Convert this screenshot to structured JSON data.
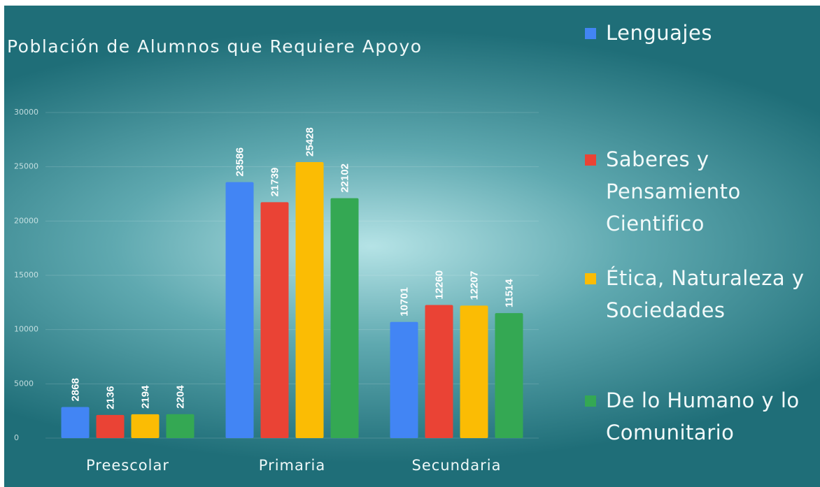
{
  "chart_data": {
    "type": "bar",
    "title": "Población de Alumnos que Requiere Apoyo",
    "categories": [
      "Preescolar",
      "Primaria",
      "Secundaria"
    ],
    "series": [
      {
        "name": "Lenguajes",
        "color": "#4285f4",
        "values": [
          2868,
          23586,
          10701
        ]
      },
      {
        "name": "Saberes y Pensamiento Cientifico",
        "color": "#ea4335",
        "values": [
          2136,
          21739,
          12260
        ]
      },
      {
        "name": "Ética, Naturaleza y Sociedades",
        "color": "#fbbc04",
        "values": [
          2194,
          25428,
          12207
        ]
      },
      {
        "name": "De lo Humano y lo Comunitario",
        "color": "#34a853",
        "values": [
          2204,
          22102,
          11514
        ]
      }
    ],
    "ylim": [
      0,
      30000
    ],
    "yticks": [
      0,
      5000,
      10000,
      15000,
      20000,
      25000,
      30000
    ],
    "grid": true,
    "legend": "right"
  }
}
